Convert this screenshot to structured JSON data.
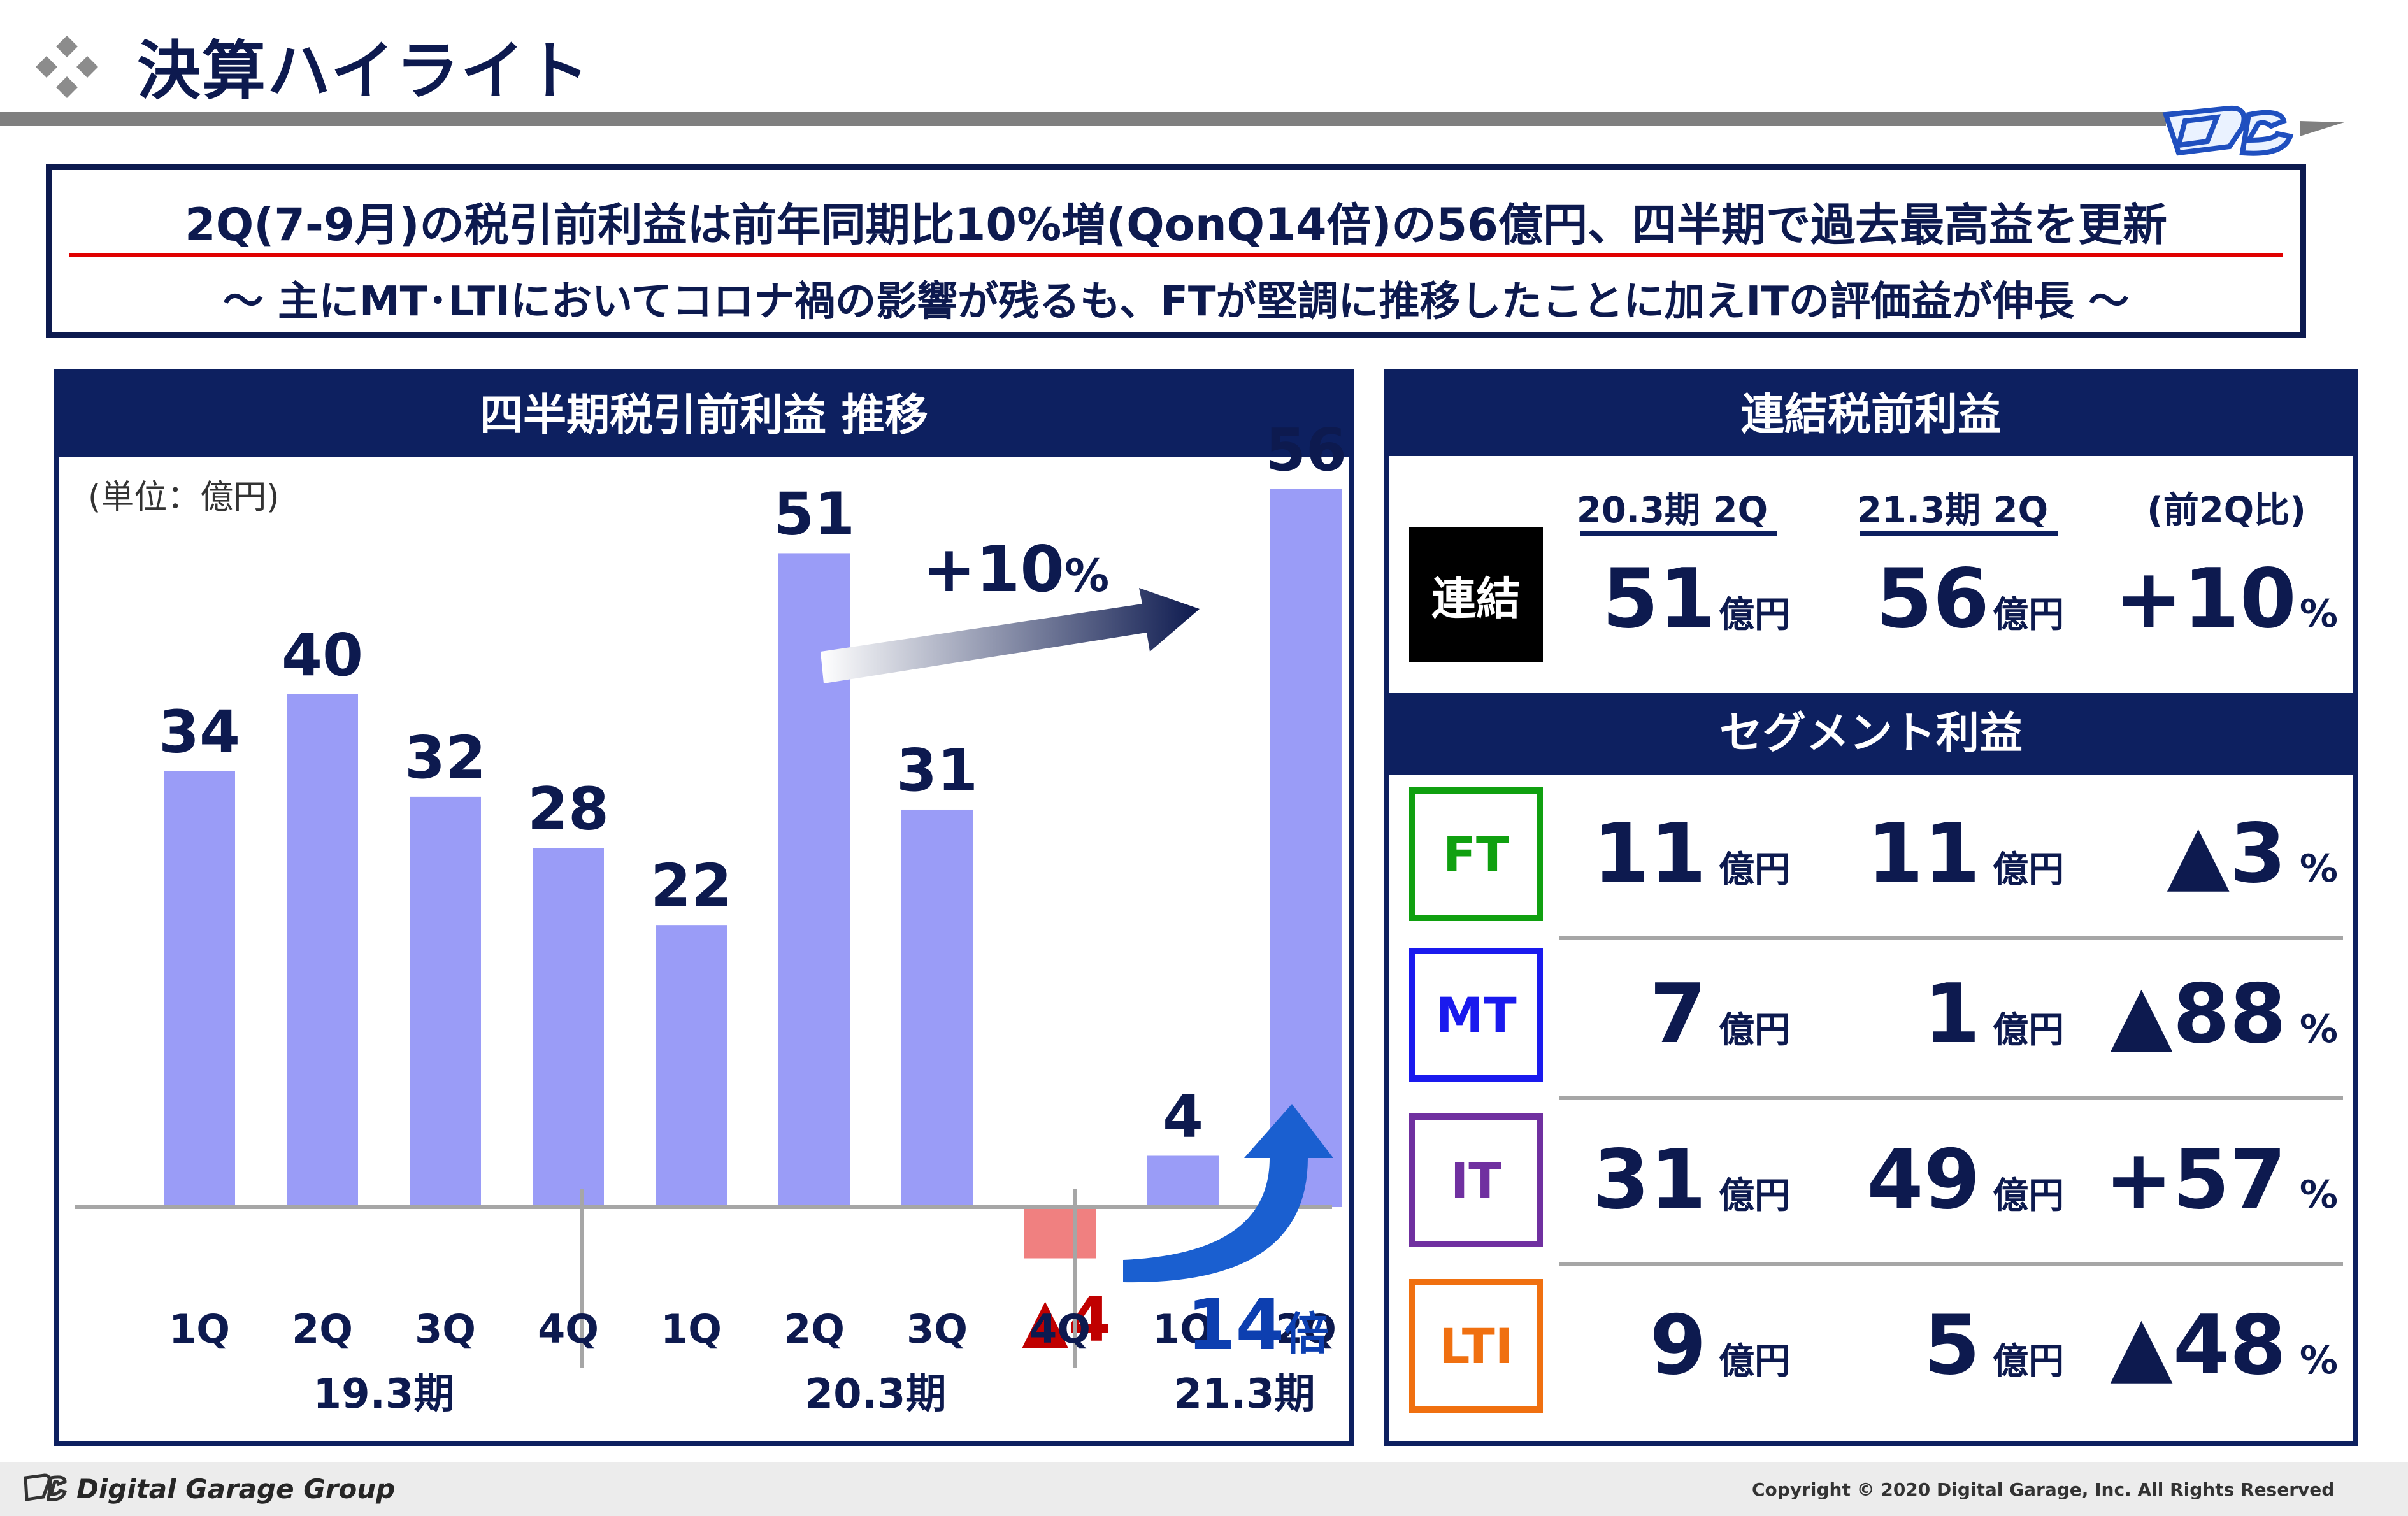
{
  "header": {
    "title": "決算ハイライト",
    "icon": "diamond-cluster-icon",
    "logo": "dg-logo-icon"
  },
  "summary": {
    "headline": "2Q(7-9月)の税引前利益は前年同期比10%増(QonQ14倍)の56億円、四半期で過去最高益を更新",
    "subline": "～ 主にMT･LTIにおいてコロナ禍の影響が残るも、FTが堅調に推移したことに加えITの評価益が伸長 ～"
  },
  "chart_panel": {
    "title": "四半期税引前利益 推移",
    "unit_note": "(単位：億円)",
    "growth_annotation": "+10",
    "growth_pct": "%",
    "multiple_annotation": "14",
    "multiple_unit": "倍"
  },
  "chart_data": {
    "type": "bar",
    "title": "四半期税引前利益 推移",
    "ylabel": "",
    "unit": "億円",
    "categories": [
      "1Q",
      "2Q",
      "3Q",
      "4Q",
      "1Q",
      "2Q",
      "3Q",
      "4Q",
      "1Q",
      "2Q"
    ],
    "groups": [
      {
        "label": "19.3期",
        "count": 4
      },
      {
        "label": "20.3期",
        "count": 4
      },
      {
        "label": "21.3期",
        "count": 2
      }
    ],
    "values": [
      34,
      40,
      32,
      28,
      22,
      51,
      31,
      -4,
      4,
      56
    ],
    "data_labels": [
      "34",
      "40",
      "32",
      "28",
      "22",
      "51",
      "31",
      "▲4",
      "4",
      "56"
    ],
    "ylim": [
      -5,
      65
    ],
    "colors": {
      "positive": "#9a9cf7",
      "negative": "#f08080",
      "negative_label": "#c00000"
    }
  },
  "consolidated": {
    "title": "連結税前利益",
    "columns": [
      "20.3期 2Q",
      "21.3期 2Q",
      "(前2Q比)"
    ],
    "row_label": "連結",
    "prev_value": "51",
    "curr_value": "56",
    "change": "+10",
    "unit": "億円",
    "pct_sign": "%"
  },
  "segments": {
    "title": "セグメント利益",
    "rows": [
      {
        "label": "FT",
        "color": "#10a010",
        "prev": "11",
        "curr": "11",
        "change": "▲3"
      },
      {
        "label": "MT",
        "color": "#1a1aee",
        "prev": "7",
        "curr": "1",
        "change": "▲88"
      },
      {
        "label": "IT",
        "color": "#7030a0",
        "prev": "31",
        "curr": "49",
        "change": "+57"
      },
      {
        "label": "LTI",
        "color": "#f07010",
        "prev": "9",
        "curr": "5",
        "change": "▲48"
      }
    ],
    "unit": "億円",
    "pct_sign": "%"
  },
  "footer": {
    "brand": "Digital Garage Group",
    "copyright": "Copyright © 2020 Digital Garage, Inc. All Rights Reserved"
  }
}
